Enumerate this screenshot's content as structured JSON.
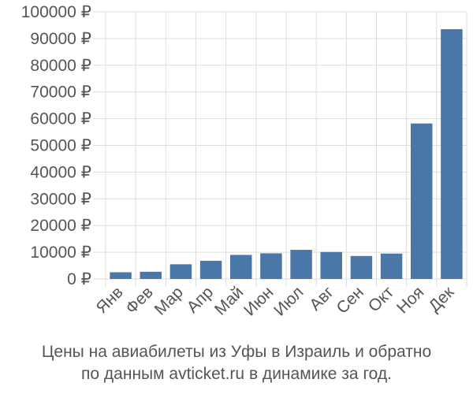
{
  "chart_data": {
    "type": "bar",
    "categories": [
      "Янв",
      "Фев",
      "Мар",
      "Апр",
      "Май",
      "Июн",
      "Июл",
      "Авг",
      "Сен",
      "Окт",
      "Ноя",
      "Дек"
    ],
    "values": [
      2500,
      2700,
      5500,
      6800,
      9000,
      9600,
      10900,
      10100,
      8600,
      9500,
      58200,
      93500
    ],
    "ylim": [
      0,
      100000
    ],
    "yticks": [
      0,
      10000,
      20000,
      30000,
      40000,
      50000,
      60000,
      70000,
      80000,
      90000,
      100000
    ],
    "ytick_labels": [
      "0 ₽",
      "10000 ₽",
      "20000 ₽",
      "30000 ₽",
      "40000 ₽",
      "50000 ₽",
      "60000 ₽",
      "70000 ₽",
      "80000 ₽",
      "90000 ₽",
      "100000 ₽"
    ],
    "bar_color": "#4a76a8",
    "grid": true,
    "legend": "none"
  },
  "caption": {
    "line1": "Цены на авиабилеты из Уфы в Израиль и обратно",
    "line2": "по данным avticket.ru в динамике за год."
  }
}
